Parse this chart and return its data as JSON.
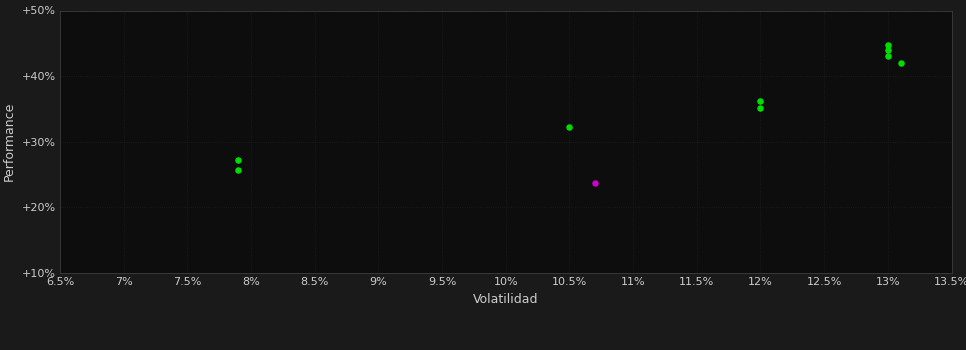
{
  "background_color": "#1a1a1a",
  "plot_bg_color": "#0d0d0d",
  "grid_color": "#2a2a2a",
  "xlabel": "Volatilidad",
  "ylabel": "Performance",
  "xlim": [
    0.065,
    0.135
  ],
  "ylim": [
    0.1,
    0.5
  ],
  "xticks": [
    0.065,
    0.07,
    0.075,
    0.08,
    0.085,
    0.09,
    0.095,
    0.1,
    0.105,
    0.11,
    0.115,
    0.12,
    0.125,
    0.13,
    0.135
  ],
  "yticks": [
    0.1,
    0.2,
    0.3,
    0.4,
    0.5
  ],
  "ytick_labels": [
    "+10%",
    "+20%",
    "+30%",
    "+40%",
    "+50%"
  ],
  "xtick_labels": [
    "6.5%",
    "7%",
    "7.5%",
    "8%",
    "8.5%",
    "9%",
    "9.5%",
    "10%",
    "10.5%",
    "11%",
    "11.5%",
    "12%",
    "12.5%",
    "13%",
    "13.5%"
  ],
  "green_points": [
    [
      0.079,
      0.272
    ],
    [
      0.079,
      0.257
    ],
    [
      0.105,
      0.323
    ],
    [
      0.12,
      0.362
    ],
    [
      0.12,
      0.352
    ],
    [
      0.13,
      0.448
    ],
    [
      0.13,
      0.44
    ],
    [
      0.13,
      0.43
    ],
    [
      0.131,
      0.42
    ]
  ],
  "magenta_points": [
    [
      0.107,
      0.237
    ]
  ],
  "point_size": 22,
  "text_color": "#cccccc",
  "axis_color": "#444444",
  "grid_linestyle": ":",
  "grid_alpha": 0.6,
  "grid_linewidth": 0.6,
  "label_fontsize": 8,
  "axis_label_fontsize": 9
}
